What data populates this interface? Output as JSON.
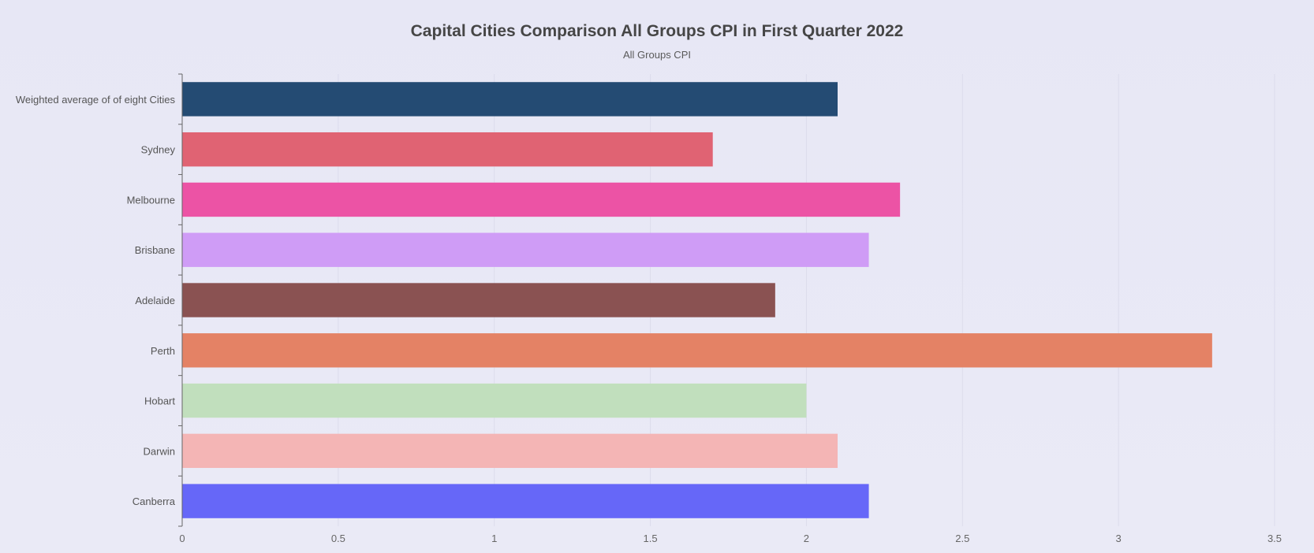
{
  "chart_data": {
    "type": "bar",
    "orientation": "horizontal",
    "title": "Capital Cities Comparison All Groups CPI in First Quarter 2022",
    "subtitle": "All Groups CPI",
    "xlabel": "",
    "ylabel": "",
    "xlim": [
      0,
      3.5
    ],
    "x_ticks": [
      "0",
      "0.5",
      "1",
      "1.5",
      "2",
      "2.5",
      "3",
      "3.5"
    ],
    "grid": true,
    "categories": [
      "Weighted average of of eight Cities",
      "Sydney",
      "Melbourne",
      "Brisbane",
      "Adelaide",
      "Perth",
      "Hobart",
      "Darwin",
      "Canberra"
    ],
    "values": [
      2.1,
      1.7,
      2.3,
      2.2,
      1.9,
      3.3,
      2.0,
      2.1,
      2.2
    ],
    "colors": [
      "#244b73",
      "#e06373",
      "#ec53a5",
      "#cf9cf6",
      "#8a5252",
      "#e48265",
      "#c1dfbd",
      "#f4b5b5",
      "#6667f8"
    ]
  }
}
